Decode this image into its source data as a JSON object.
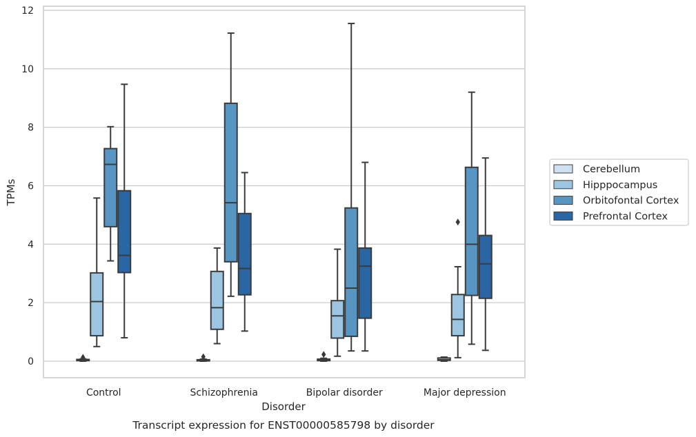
{
  "chart_data": {
    "type": "box",
    "xlabel": "Disorder",
    "ylabel": "TPMs",
    "caption": "Transcript expression for ENST00000585798 by disorder",
    "ylim": [
      -0.55,
      12.2
    ],
    "yticks": [
      0,
      2,
      4,
      6,
      8,
      10,
      12
    ],
    "grid": "horizontal",
    "legend_position": "right",
    "categories": [
      "Control",
      "Schizophrenia",
      "Bipolar disorder",
      "Major depression"
    ],
    "series": [
      {
        "name": "Cerebellum",
        "color": "#d0e0f0",
        "boxes": [
          {
            "min": 0.0,
            "q1": 0.02,
            "median": 0.04,
            "q3": 0.06,
            "max": 0.08,
            "outliers": [
              0.13
            ]
          },
          {
            "min": 0.0,
            "q1": 0.01,
            "median": 0.03,
            "q3": 0.05,
            "max": 0.07,
            "outliers": [
              0.15
            ]
          },
          {
            "min": 0.0,
            "q1": 0.02,
            "median": 0.04,
            "q3": 0.07,
            "max": 0.1,
            "outliers": [
              0.23
            ]
          },
          {
            "min": 0.0,
            "q1": 0.03,
            "median": 0.05,
            "q3": 0.11,
            "max": 0.14,
            "outliers": []
          }
        ]
      },
      {
        "name": "Hipppocampus",
        "color": "#9bc5e0",
        "boxes": [
          {
            "min": 0.5,
            "q1": 0.87,
            "median": 2.04,
            "q3": 3.02,
            "max": 5.58,
            "outliers": []
          },
          {
            "min": 0.6,
            "q1": 1.09,
            "median": 1.83,
            "q3": 3.07,
            "max": 3.87,
            "outliers": []
          },
          {
            "min": 0.17,
            "q1": 0.79,
            "median": 1.55,
            "q3": 2.07,
            "max": 3.83,
            "outliers": []
          },
          {
            "min": 0.12,
            "q1": 0.87,
            "median": 1.43,
            "q3": 2.28,
            "max": 3.23,
            "outliers": [
              4.76
            ]
          }
        ]
      },
      {
        "name": "Orbitofontal Cortex",
        "color": "#5796c3",
        "boxes": [
          {
            "min": 3.43,
            "q1": 4.6,
            "median": 6.73,
            "q3": 7.27,
            "max": 8.02,
            "outliers": []
          },
          {
            "min": 2.22,
            "q1": 3.4,
            "median": 5.42,
            "q3": 8.82,
            "max": 11.22,
            "outliers": []
          },
          {
            "min": 0.35,
            "q1": 0.85,
            "median": 2.5,
            "q3": 5.24,
            "max": 11.55,
            "outliers": []
          },
          {
            "min": 0.58,
            "q1": 2.25,
            "median": 4.0,
            "q3": 6.63,
            "max": 9.2,
            "outliers": []
          }
        ]
      },
      {
        "name": "Prefrontal Cortex",
        "color": "#2a66a4",
        "boxes": [
          {
            "min": 0.8,
            "q1": 3.03,
            "median": 3.62,
            "q3": 5.83,
            "max": 9.47,
            "outliers": []
          },
          {
            "min": 1.03,
            "q1": 2.27,
            "median": 3.17,
            "q3": 5.05,
            "max": 6.45,
            "outliers": []
          },
          {
            "min": 0.35,
            "q1": 1.47,
            "median": 3.25,
            "q3": 3.87,
            "max": 6.8,
            "outliers": []
          },
          {
            "min": 0.37,
            "q1": 2.15,
            "median": 3.33,
            "q3": 4.3,
            "max": 6.95,
            "outliers": []
          }
        ]
      }
    ]
  }
}
